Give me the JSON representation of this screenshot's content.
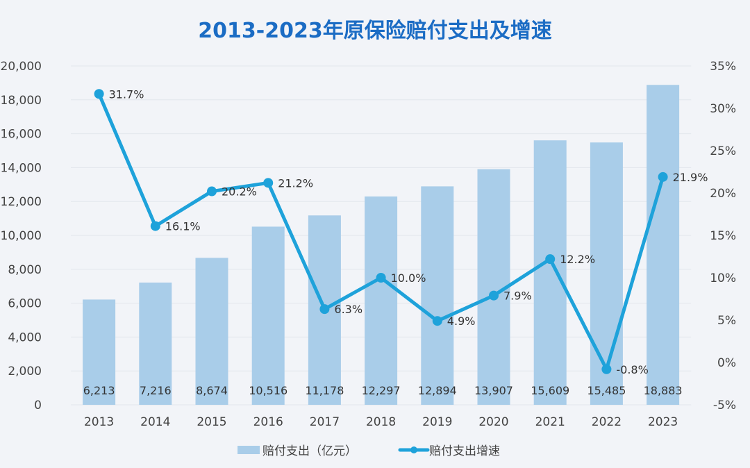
{
  "chart_data": {
    "type": "bar+line",
    "title": "2013-2023年原保险赔付支出及增速",
    "categories": [
      "2013",
      "2014",
      "2015",
      "2016",
      "2017",
      "2018",
      "2019",
      "2020",
      "2021",
      "2022",
      "2023"
    ],
    "series": [
      {
        "name": "赔付支出（亿元）",
        "type": "bar",
        "axis": "left",
        "values": [
          6213,
          7216,
          8674,
          10516,
          11178,
          12297,
          12894,
          13907,
          15609,
          15485,
          18883
        ],
        "labels": [
          "6,213",
          "7,216",
          "8,674",
          "10,516",
          "11,178",
          "12,297",
          "12,894",
          "13,907",
          "15,609",
          "15,485",
          "18,883"
        ],
        "color": "#a9cde9"
      },
      {
        "name": "赔付支出增速",
        "type": "line",
        "axis": "right",
        "values": [
          31.7,
          16.1,
          20.2,
          21.2,
          6.3,
          10.0,
          4.9,
          7.9,
          12.2,
          -0.8,
          21.9
        ],
        "labels": [
          "31.7%",
          "16.1%",
          "20.2%",
          "21.2%",
          "6.3%",
          "10.0%",
          "4.9%",
          "7.9%",
          "12.2%",
          "-0.8%",
          "21.9%"
        ],
        "color": "#1ea2da"
      }
    ],
    "y_left": {
      "lim": [
        0,
        20000
      ],
      "ticks": [
        "0",
        "2,000",
        "4,000",
        "6,000",
        "8,000",
        "10,000",
        "12,000",
        "14,000",
        "16,000",
        "18,000",
        "20,000"
      ]
    },
    "y_right": {
      "lim": [
        -5,
        35
      ],
      "ticks": [
        "-5%",
        "0%",
        "5%",
        "10%",
        "15%",
        "20%",
        "25%",
        "30%",
        "35%"
      ]
    },
    "grid": true,
    "legend_position": "bottom"
  }
}
